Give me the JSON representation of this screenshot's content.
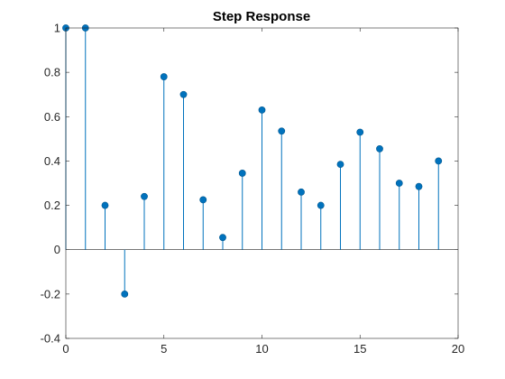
{
  "chart_data": {
    "type": "stem",
    "title": "Step Response",
    "xlabel": "",
    "ylabel": "",
    "xlim": [
      0,
      20
    ],
    "ylim": [
      -0.4,
      1
    ],
    "x_ticks": [
      0,
      5,
      10,
      15,
      20
    ],
    "y_ticks": [
      -0.4,
      -0.2,
      0,
      0.2,
      0.4,
      0.6,
      0.8,
      1
    ],
    "x_tick_labels": [
      "0",
      "5",
      "10",
      "15",
      "20"
    ],
    "y_tick_labels": [
      "-0.4",
      "-0.2",
      "0",
      "0.2",
      "0.4",
      "0.6",
      "0.8",
      "1"
    ],
    "grid": false,
    "baseline": 0,
    "series": [
      {
        "x": [
          0,
          1,
          2,
          3,
          4,
          5,
          6,
          7,
          8,
          9,
          10,
          11,
          12,
          13,
          14,
          15,
          16,
          17,
          18,
          19
        ],
        "values": [
          1.0,
          1.0,
          0.2,
          -0.2,
          0.24,
          0.78,
          0.7,
          0.225,
          0.055,
          0.345,
          0.63,
          0.535,
          0.26,
          0.2,
          0.385,
          0.53,
          0.455,
          0.3,
          0.285,
          0.4
        ]
      }
    ]
  },
  "colors": {
    "series": "#0072BD",
    "axes": "#262626",
    "background": "#ffffff"
  }
}
